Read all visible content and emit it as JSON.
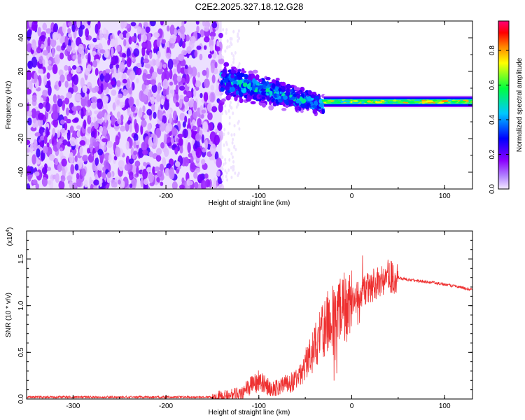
{
  "title": "C2E2.2025.327.18.12.G28",
  "chart_data": [
    {
      "type": "heatmap",
      "xlabel": "Height of straight line (km)",
      "ylabel": "Frequency (Hz)",
      "xlim": [
        -350,
        130
      ],
      "ylim": [
        -50,
        50
      ],
      "x_ticks": [
        "-300",
        "-200",
        "-100",
        "0",
        "100"
      ],
      "y_ticks": [
        "-40",
        "-20",
        "0",
        "20",
        "40"
      ],
      "colorbar": {
        "label": "Normalized spectral amplitude",
        "range": [
          0,
          0.97
        ],
        "ticks": [
          "0.0",
          "0.2",
          "0.4",
          "0.6",
          "0.8"
        ],
        "colors": [
          "#f4eaff",
          "#8b00ff",
          "#0000ff",
          "#00c8ff",
          "#00ff40",
          "#ffff00",
          "#ff8000",
          "#ff0000",
          "#ff0078"
        ]
      },
      "regions": [
        {
          "x_range": [
            -350,
            -140
          ],
          "freq_range": [
            -50,
            50
          ],
          "amplitude": "noise 0.05-0.25"
        },
        {
          "x_range": [
            -140,
            -30
          ],
          "freq_center_start": 15,
          "freq_center_end": 0,
          "amplitude": "0.2-0.55"
        },
        {
          "x_range": [
            -30,
            130
          ],
          "freq_center": 2,
          "amplitude": "0.45-0.85"
        }
      ]
    },
    {
      "type": "line",
      "xlabel": "Height of straight line (km)",
      "ylabel": "SNR (10 * v/v)",
      "y_multiplier": "(x10",
      "y_exponent": "4",
      "xlim": [
        -350,
        130
      ],
      "ylim": [
        0,
        1.8
      ],
      "x_ticks": [
        "-300",
        "-200",
        "-100",
        "0",
        "100"
      ],
      "y_ticks": [
        "0.0",
        "0.5",
        "1.0",
        "1.5"
      ],
      "series_color": "#ee3030",
      "key_points": [
        {
          "x": -350,
          "y": 0.02
        },
        {
          "x": -150,
          "y": 0.02
        },
        {
          "x": -120,
          "y": 0.06
        },
        {
          "x": -100,
          "y": 0.2
        },
        {
          "x": -85,
          "y": 0.1
        },
        {
          "x": -60,
          "y": 0.2
        },
        {
          "x": -45,
          "y": 0.45
        },
        {
          "x": -25,
          "y": 0.85
        },
        {
          "x": -10,
          "y": 0.95
        },
        {
          "x": 0,
          "y": 1.05
        },
        {
          "x": 20,
          "y": 1.2
        },
        {
          "x": 40,
          "y": 1.32
        },
        {
          "x": 60,
          "y": 1.28
        },
        {
          "x": 100,
          "y": 1.23
        },
        {
          "x": 130,
          "y": 1.17
        }
      ]
    }
  ]
}
